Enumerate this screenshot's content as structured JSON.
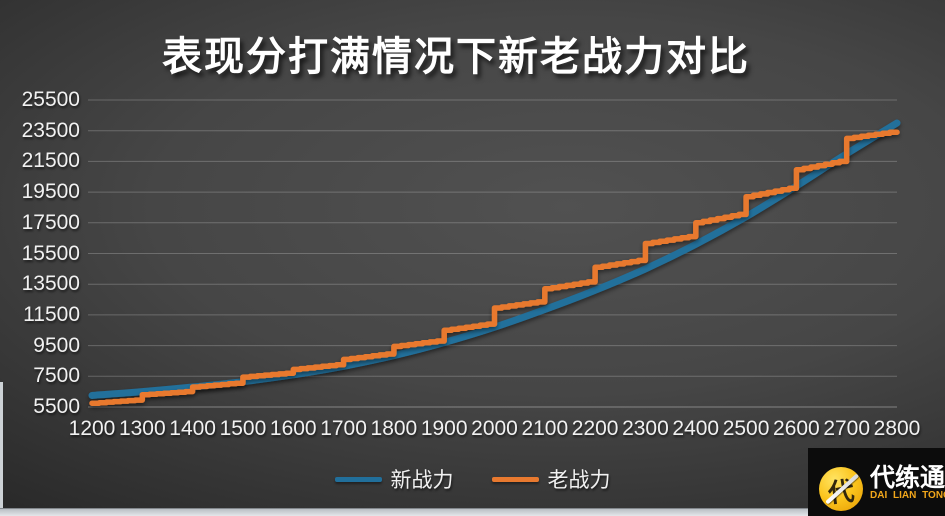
{
  "title": "表现分打满情况下新老战力对比",
  "watermark": {
    "cn": "代练通",
    "en": "DAI LIAN TONG",
    "glyph": "代"
  },
  "colors": {
    "new_series": "#216F9B",
    "old_series": "#E8792F",
    "grid": "rgba(255,255,255,0.22)",
    "axis_text": "#F1F1F1",
    "logo_yellow": "#FBC41D",
    "logo_en_text": "#F2A71B"
  },
  "chart_data": {
    "type": "line",
    "title": "表现分打满情况下新老战力对比",
    "xlabel": "",
    "ylabel": "",
    "xlim": [
      1200,
      2800
    ],
    "ylim": [
      5500,
      25500
    ],
    "grid": true,
    "legend_position": "bottom",
    "x_ticks": [
      1200,
      1300,
      1400,
      1500,
      1600,
      1700,
      1800,
      1900,
      2000,
      2100,
      2200,
      2300,
      2400,
      2500,
      2600,
      2700,
      2800
    ],
    "y_ticks": [
      5500,
      7500,
      9500,
      11500,
      13500,
      15500,
      17500,
      19500,
      21500,
      23500,
      25500
    ],
    "series": [
      {
        "name": "新战力",
        "style": "smooth",
        "color": "#216F9B",
        "x": [
          1200,
          1300,
          1400,
          1500,
          1600,
          1700,
          1800,
          1900,
          2000,
          2100,
          2200,
          2300,
          2400,
          2500,
          2600,
          2700,
          2800
        ],
        "values": [
          6250,
          6500,
          6800,
          7150,
          7600,
          8150,
          8850,
          9700,
          10700,
          11850,
          13100,
          14500,
          16100,
          17900,
          19900,
          22000,
          24000
        ]
      },
      {
        "name": "老战力",
        "style": "stepped",
        "color": "#E8792F",
        "step_width": 100,
        "substeps_per_step": 7,
        "end_x": 2800,
        "segments": [
          {
            "from": 1200,
            "start": 5750,
            "end": 5950
          },
          {
            "from": 1300,
            "start": 6300,
            "end": 6500
          },
          {
            "from": 1400,
            "start": 6800,
            "end": 7050
          },
          {
            "from": 1500,
            "start": 7450,
            "end": 7700
          },
          {
            "from": 1600,
            "start": 7950,
            "end": 8250
          },
          {
            "from": 1700,
            "start": 8600,
            "end": 8950
          },
          {
            "from": 1800,
            "start": 9450,
            "end": 9800
          },
          {
            "from": 1900,
            "start": 10500,
            "end": 10900
          },
          {
            "from": 2000,
            "start": 11950,
            "end": 12350
          },
          {
            "from": 2100,
            "start": 13200,
            "end": 13650
          },
          {
            "from": 2200,
            "start": 14600,
            "end": 15050
          },
          {
            "from": 2300,
            "start": 16150,
            "end": 16600
          },
          {
            "from": 2400,
            "start": 17500,
            "end": 18050
          },
          {
            "from": 2500,
            "start": 19200,
            "end": 19750
          },
          {
            "from": 2600,
            "start": 20950,
            "end": 21500
          },
          {
            "from": 2700,
            "start": 23000,
            "end": 23400
          }
        ]
      }
    ]
  }
}
